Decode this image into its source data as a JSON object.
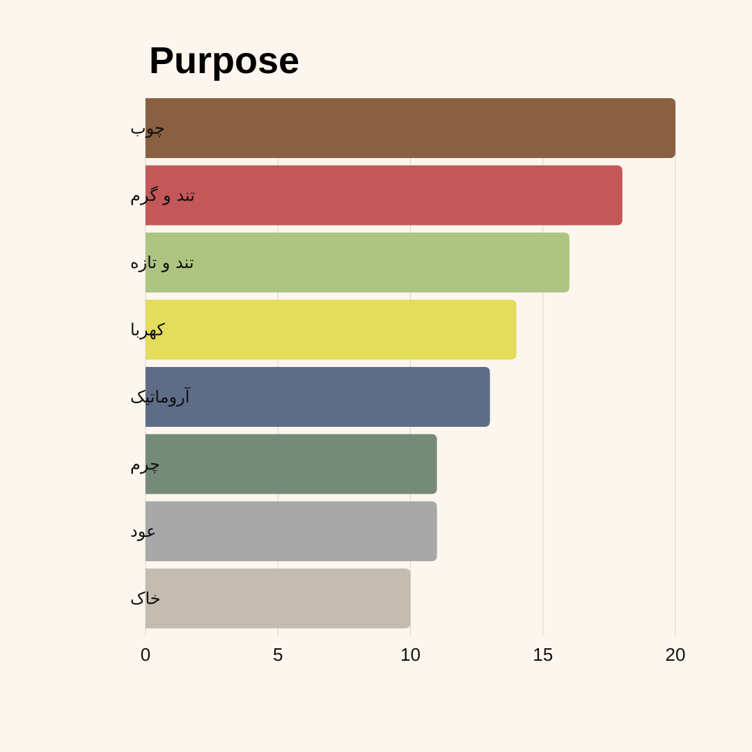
{
  "chart_data": {
    "type": "bar",
    "orientation": "horizontal",
    "title": "Purpose",
    "categories": [
      "چوب",
      "تند و گرم",
      "تند و تازه",
      "کهربا",
      "آروماتیک",
      "چرم",
      "عود",
      "خاک"
    ],
    "values": [
      20,
      18,
      16,
      14,
      13,
      11,
      11,
      10
    ],
    "colors": [
      "#8a6042",
      "#c45858",
      "#aec481",
      "#e4dd5c",
      "#5e6c88",
      "#768a7a",
      "#a8a8a8",
      "#c4bcb0"
    ],
    "xticks": [
      "0",
      "5",
      "10",
      "15",
      "20"
    ],
    "xlim": [
      0,
      20
    ],
    "xlabel": "",
    "ylabel": "",
    "grid": true,
    "background": "#fdf6ee"
  }
}
